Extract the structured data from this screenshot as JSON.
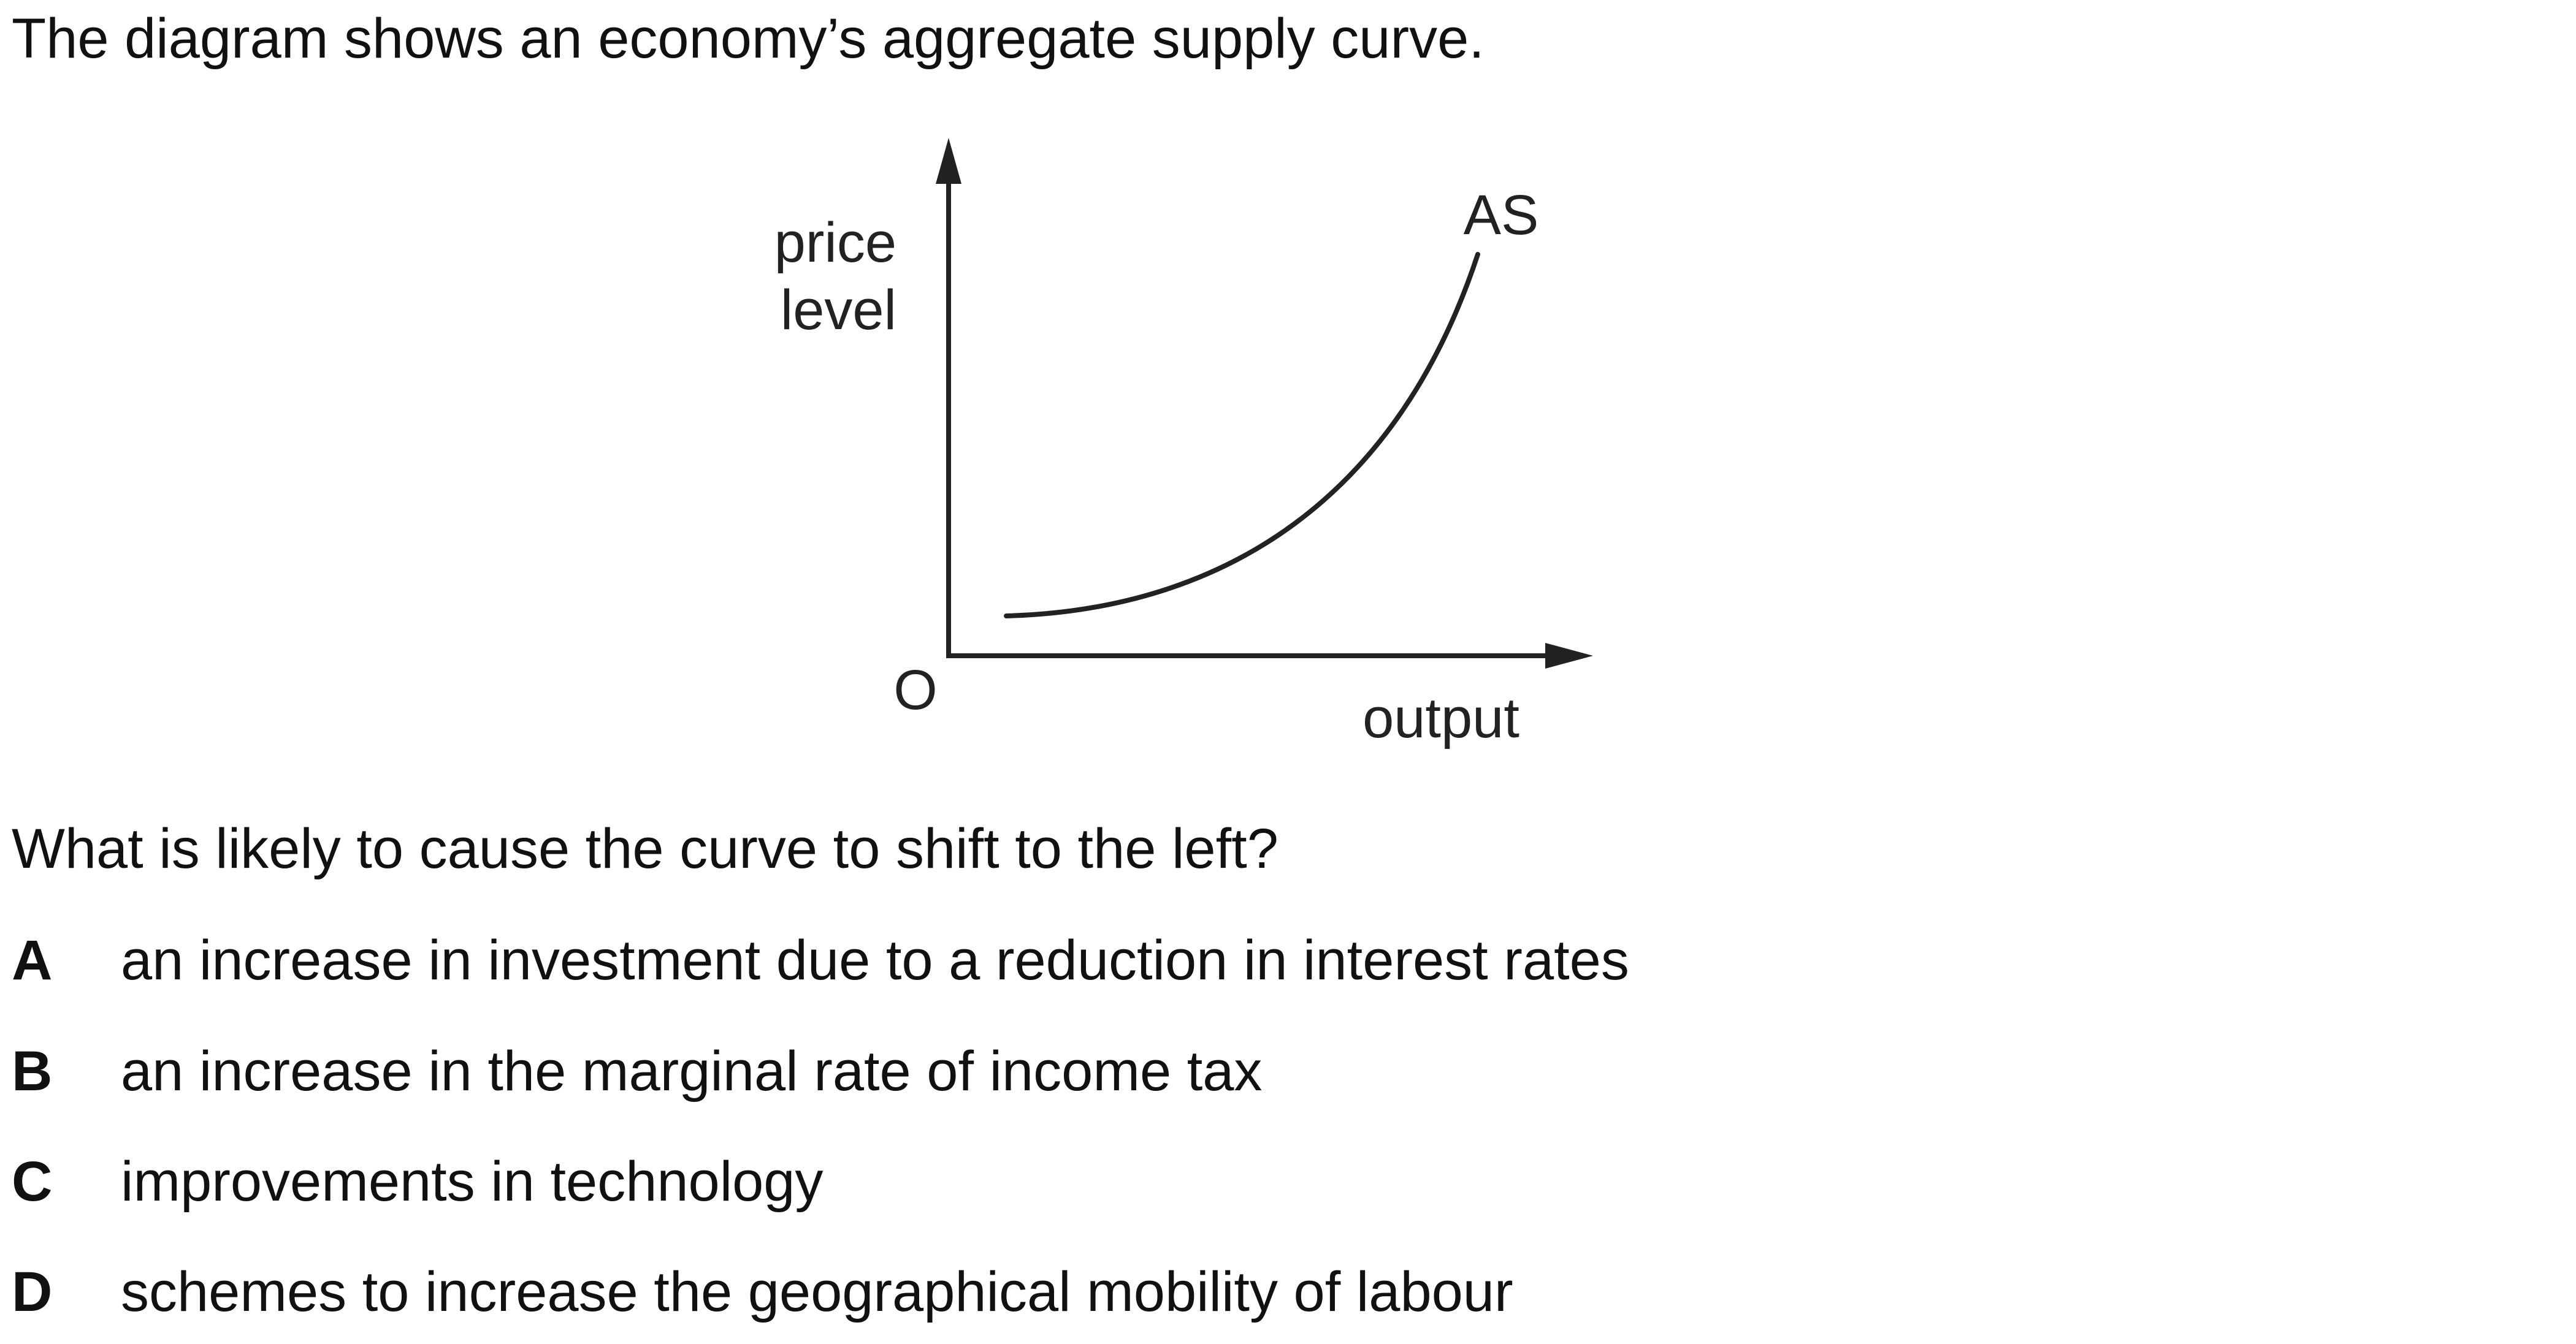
{
  "intro": "The diagram shows an economy’s aggregate supply curve.",
  "diagram": {
    "y_axis_label_line1": "price",
    "y_axis_label_line2": "level",
    "x_axis_label": "output",
    "origin_label": "O",
    "curve_label": "AS"
  },
  "question": "What is likely to cause the curve to shift to the left?",
  "options": [
    {
      "letter": "A",
      "text": "an increase in investment due to a reduction in interest rates"
    },
    {
      "letter": "B",
      "text": "an increase in the marginal rate of income tax"
    },
    {
      "letter": "C",
      "text": "improvements in technology"
    },
    {
      "letter": "D",
      "text": "schemes to increase the geographical mobility of labour"
    }
  ]
}
